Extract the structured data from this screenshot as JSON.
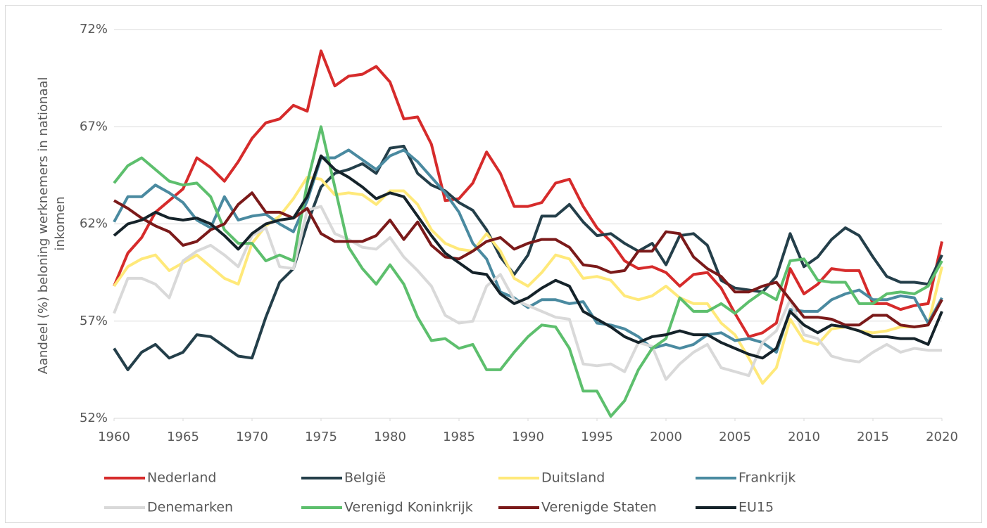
{
  "chart_data": {
    "type": "line",
    "ylabel": [
      "Aandeel (%) beloning werknemers in nationaal",
      "inkomen"
    ],
    "x": [
      1960,
      1961,
      1962,
      1963,
      1964,
      1965,
      1966,
      1967,
      1968,
      1969,
      1970,
      1971,
      1972,
      1973,
      1974,
      1975,
      1976,
      1977,
      1978,
      1979,
      1980,
      1981,
      1982,
      1983,
      1984,
      1985,
      1986,
      1987,
      1988,
      1989,
      1990,
      1991,
      1992,
      1993,
      1994,
      1995,
      1996,
      1997,
      1998,
      1999,
      2000,
      2001,
      2002,
      2003,
      2004,
      2005,
      2006,
      2007,
      2008,
      2009,
      2010,
      2011,
      2012,
      2013,
      2014,
      2015,
      2016,
      2017,
      2018,
      2019,
      2020
    ],
    "xlim": [
      1960,
      2020
    ],
    "xticks": [
      1960,
      1965,
      1970,
      1975,
      1980,
      1985,
      1990,
      1995,
      2000,
      2005,
      2010,
      2015,
      2020
    ],
    "ylim": [
      52,
      72
    ],
    "yticks": [
      {
        "value": 52,
        "label": "52%"
      },
      {
        "value": 57,
        "label": "57%"
      },
      {
        "value": 62,
        "label": "62%"
      },
      {
        "value": 67,
        "label": "67%"
      },
      {
        "value": 72,
        "label": "72%"
      }
    ],
    "grid": true,
    "legend": "bottom",
    "series": [
      {
        "name": "Nederland",
        "color": "#d62b2b",
        "values": [
          58.8,
          60.5,
          61.3,
          62.6,
          63.2,
          63.8,
          65.4,
          64.9,
          64.2,
          65.2,
          66.4,
          67.2,
          67.4,
          68.1,
          67.8,
          70.9,
          69.1,
          69.6,
          69.7,
          70.1,
          69.3,
          67.4,
          67.5,
          66.1,
          63.2,
          63.3,
          64.1,
          65.7,
          64.6,
          62.9,
          62.9,
          63.1,
          64.1,
          64.3,
          62.9,
          61.8,
          61.1,
          60.1,
          59.7,
          59.8,
          59.5,
          58.8,
          59.4,
          59.5,
          58.7,
          57.4,
          56.2,
          56.4,
          56.9,
          59.7,
          58.4,
          58.9,
          59.7,
          59.6,
          59.6,
          57.9,
          57.9,
          57.6,
          57.8,
          57.9,
          61.1
        ]
      },
      {
        "name": "België",
        "color": "#243f4a",
        "values": [
          55.6,
          54.5,
          55.4,
          55.8,
          55.1,
          55.4,
          56.3,
          56.2,
          55.7,
          55.2,
          55.1,
          57.2,
          59.0,
          59.7,
          62.0,
          63.9,
          64.6,
          64.8,
          65.1,
          64.6,
          65.9,
          66.0,
          64.6,
          64.0,
          63.7,
          63.1,
          62.7,
          61.7,
          60.3,
          59.4,
          60.4,
          62.4,
          62.4,
          63.0,
          62.1,
          61.4,
          61.5,
          61.0,
          60.6,
          61.0,
          59.9,
          61.4,
          61.5,
          60.9,
          59.1,
          58.7,
          58.6,
          58.5,
          59.3,
          61.5,
          59.8,
          60.3,
          61.2,
          61.8,
          61.4,
          60.3,
          59.3,
          59.0,
          59.0,
          58.9,
          60.4
        ]
      },
      {
        "name": "Duitsland",
        "color": "#ffe97a",
        "values": [
          58.8,
          59.8,
          60.2,
          60.4,
          59.6,
          60.0,
          60.4,
          59.8,
          59.2,
          58.9,
          61.0,
          61.9,
          62.4,
          63.3,
          64.4,
          64.3,
          63.5,
          63.6,
          63.5,
          63.0,
          63.7,
          63.7,
          63.0,
          61.7,
          61.0,
          60.7,
          60.6,
          61.5,
          60.6,
          59.2,
          58.8,
          59.5,
          60.4,
          60.2,
          59.2,
          59.3,
          59.1,
          58.3,
          58.1,
          58.3,
          58.8,
          58.2,
          57.9,
          57.9,
          56.9,
          56.3,
          55.1,
          53.8,
          54.6,
          57.1,
          56.0,
          55.8,
          56.6,
          56.7,
          56.5,
          56.4,
          56.5,
          56.7,
          56.7,
          56.8,
          59.8
        ]
      },
      {
        "name": "Frankrijk",
        "color": "#4a8aa0",
        "values": [
          62.1,
          63.4,
          63.4,
          64.0,
          63.6,
          63.1,
          62.2,
          61.8,
          63.4,
          62.2,
          62.4,
          62.5,
          62.0,
          61.6,
          63.2,
          65.4,
          65.4,
          65.8,
          65.3,
          64.8,
          65.5,
          65.8,
          65.2,
          64.4,
          63.6,
          62.6,
          61.0,
          60.2,
          58.5,
          58.2,
          57.7,
          58.1,
          58.1,
          57.9,
          58.0,
          56.9,
          56.8,
          56.6,
          56.2,
          55.6,
          55.8,
          55.6,
          55.8,
          56.3,
          56.4,
          56.0,
          56.1,
          55.9,
          55.4,
          57.6,
          57.5,
          57.5,
          58.1,
          58.4,
          58.6,
          58.1,
          58.1,
          58.3,
          58.2,
          56.9,
          58.2
        ]
      },
      {
        "name": "Denemarken",
        "color": "#d9d9d9",
        "values": [
          57.4,
          59.2,
          59.2,
          58.9,
          58.2,
          60.1,
          60.6,
          60.9,
          60.4,
          59.8,
          61.4,
          61.8,
          59.8,
          59.7,
          62.7,
          62.9,
          61.5,
          61.2,
          60.8,
          60.7,
          61.3,
          60.3,
          59.6,
          58.8,
          57.3,
          56.9,
          57.0,
          58.8,
          59.4,
          58.1,
          57.8,
          57.5,
          57.2,
          57.1,
          54.8,
          54.7,
          54.8,
          54.4,
          55.9,
          55.7,
          54.0,
          54.8,
          55.4,
          55.8,
          54.6,
          54.4,
          54.2,
          55.9,
          56.5,
          58.1,
          56.3,
          56.1,
          55.2,
          55.0,
          54.9,
          55.4,
          55.8,
          55.4,
          55.6,
          55.5,
          55.5
        ]
      },
      {
        "name": "Verenigd Koninkrijk",
        "color": "#5dbf6d",
        "values": [
          64.1,
          65.0,
          65.4,
          64.8,
          64.2,
          64.0,
          64.1,
          63.4,
          61.7,
          61.0,
          61.0,
          60.1,
          60.4,
          60.1,
          64.1,
          67.0,
          63.9,
          60.8,
          59.7,
          58.9,
          59.9,
          58.9,
          57.2,
          56.0,
          56.1,
          55.6,
          55.8,
          54.5,
          54.5,
          55.4,
          56.2,
          56.8,
          56.7,
          55.6,
          53.4,
          53.4,
          52.1,
          52.9,
          54.5,
          55.6,
          56.1,
          58.2,
          57.5,
          57.5,
          57.9,
          57.4,
          58.0,
          58.5,
          58.1,
          60.1,
          60.2,
          59.1,
          59.0,
          59.0,
          57.9,
          57.9,
          58.4,
          58.5,
          58.4,
          58.8,
          60.1
        ]
      },
      {
        "name": "Verenigde Staten",
        "color": "#7b1a1a",
        "values": [
          63.2,
          62.8,
          62.3,
          61.9,
          61.6,
          60.9,
          61.1,
          61.7,
          62.0,
          63.0,
          63.6,
          62.6,
          62.6,
          62.3,
          62.8,
          61.5,
          61.1,
          61.1,
          61.1,
          61.4,
          62.2,
          61.2,
          62.1,
          60.9,
          60.3,
          60.2,
          60.6,
          61.1,
          61.3,
          60.7,
          61.0,
          61.2,
          61.2,
          60.8,
          59.9,
          59.8,
          59.5,
          59.6,
          60.6,
          60.6,
          61.6,
          61.5,
          60.3,
          59.7,
          59.3,
          58.5,
          58.5,
          58.8,
          59.0,
          58.1,
          57.2,
          57.2,
          57.1,
          56.8,
          56.8,
          57.3,
          57.3,
          56.8,
          56.7,
          56.8,
          58.1
        ]
      },
      {
        "name": "EU15",
        "color": "#15232a",
        "values": [
          61.4,
          62.0,
          62.2,
          62.6,
          62.3,
          62.2,
          62.3,
          62.0,
          61.4,
          60.7,
          61.5,
          62.0,
          62.2,
          62.3,
          63.4,
          65.5,
          64.8,
          64.4,
          63.9,
          63.3,
          63.6,
          63.4,
          62.4,
          61.4,
          60.5,
          60.0,
          59.5,
          59.4,
          58.4,
          57.9,
          58.2,
          58.7,
          59.1,
          58.8,
          57.5,
          57.1,
          56.7,
          56.2,
          55.9,
          56.2,
          56.3,
          56.5,
          56.3,
          56.3,
          55.9,
          55.6,
          55.3,
          55.1,
          55.6,
          57.5,
          56.8,
          56.4,
          56.8,
          56.7,
          56.5,
          56.2,
          56.2,
          56.1,
          56.1,
          55.8,
          57.5
        ]
      }
    ]
  }
}
